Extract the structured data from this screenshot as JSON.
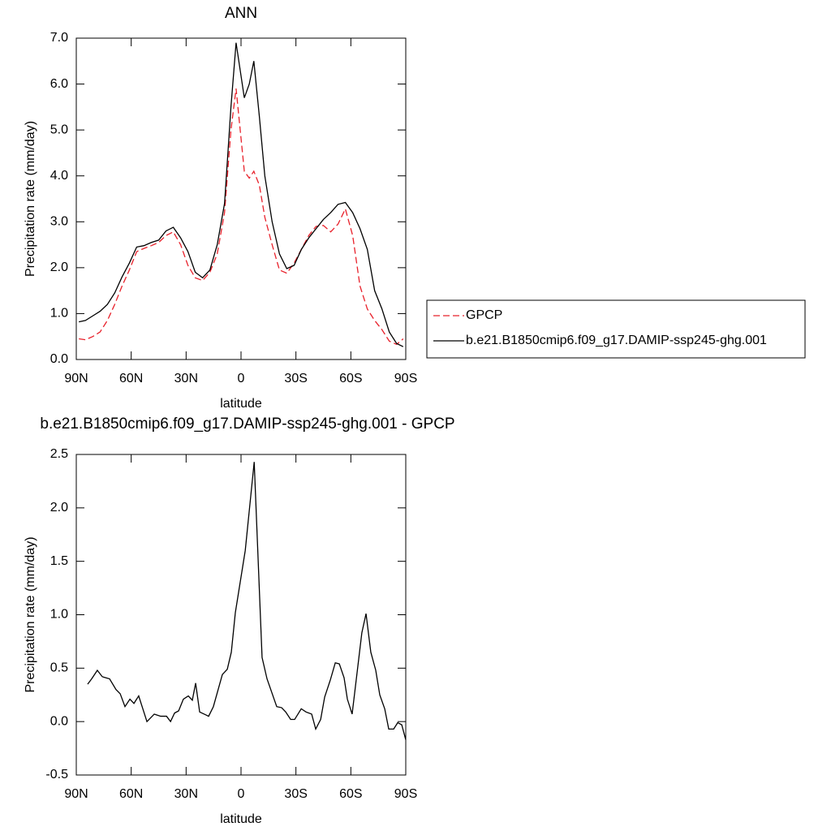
{
  "chart_data": [
    {
      "type": "line",
      "title": "ANN",
      "xlabel": "latitude",
      "ylabel": "Precipitation rate (mm/day)",
      "xlim": [
        90,
        -90
      ],
      "xticks": [
        {
          "value": 90,
          "label": "90N"
        },
        {
          "value": 60,
          "label": "60N"
        },
        {
          "value": 30,
          "label": "30N"
        },
        {
          "value": 0,
          "label": "0"
        },
        {
          "value": -30,
          "label": "30S"
        },
        {
          "value": -60,
          "label": "60S"
        },
        {
          "value": -90,
          "label": "90S"
        }
      ],
      "ylim": [
        0,
        7
      ],
      "yticks": [
        {
          "value": 0,
          "label": "0.0"
        },
        {
          "value": 1,
          "label": "1.0"
        },
        {
          "value": 2,
          "label": "2.0"
        },
        {
          "value": 3,
          "label": "3.0"
        },
        {
          "value": 4,
          "label": "4.0"
        },
        {
          "value": 5,
          "label": "5.0"
        },
        {
          "value": 6,
          "label": "6.0"
        },
        {
          "value": 7,
          "label": "7.0"
        }
      ],
      "legend": "right",
      "x": [
        88.6,
        85,
        81,
        77,
        73,
        69,
        65,
        61,
        57,
        53,
        49,
        45,
        41,
        37,
        33,
        29,
        25,
        21,
        17,
        13,
        9,
        5.5,
        2.7,
        -1.8,
        -4.5,
        -7,
        -10,
        -13,
        -17,
        -21,
        -25,
        -29,
        -33,
        -37,
        -41,
        -45,
        -49,
        -53,
        -57,
        -61,
        -65,
        -69,
        -73,
        -77,
        -81,
        -85,
        -88.6
      ],
      "series": [
        {
          "name": "GPCP",
          "color": "#e8202a",
          "dash": true,
          "values": [
            0.45,
            0.43,
            0.5,
            0.6,
            0.85,
            1.2,
            1.6,
            1.95,
            2.35,
            2.42,
            2.48,
            2.55,
            2.7,
            2.78,
            2.5,
            2.05,
            1.78,
            1.72,
            1.9,
            2.3,
            3.2,
            5.0,
            5.9,
            4.1,
            3.95,
            4.1,
            3.8,
            3.1,
            2.5,
            1.95,
            1.88,
            2.1,
            2.4,
            2.7,
            2.9,
            2.92,
            2.78,
            2.95,
            3.28,
            2.7,
            1.6,
            1.1,
            0.85,
            0.65,
            0.4,
            0.33,
            0.45
          ]
        },
        {
          "name": "b.e21.B1850cmip6.f09_g17.DAMIP-ssp245-ghg.001",
          "color": "#000000",
          "dash": false,
          "values": [
            0.82,
            0.85,
            0.95,
            1.05,
            1.2,
            1.45,
            1.8,
            2.1,
            2.45,
            2.48,
            2.55,
            2.6,
            2.8,
            2.88,
            2.65,
            2.35,
            1.9,
            1.78,
            1.95,
            2.5,
            3.4,
            5.5,
            6.9,
            5.7,
            6.0,
            6.5,
            5.3,
            4.0,
            3.0,
            2.3,
            1.98,
            2.05,
            2.4,
            2.65,
            2.85,
            3.05,
            3.2,
            3.38,
            3.42,
            3.2,
            2.85,
            2.4,
            1.5,
            1.1,
            0.6,
            0.35,
            0.28
          ]
        }
      ]
    },
    {
      "type": "line",
      "title": "b.e21.B1850cmip6.f09_g17.DAMIP-ssp245-ghg.001 - GPCP",
      "xlabel": "latitude",
      "ylabel": "Precipitation rate (mm/day)",
      "xlim": [
        90,
        -90
      ],
      "xticks": [
        {
          "value": 90,
          "label": "90N"
        },
        {
          "value": 60,
          "label": "60N"
        },
        {
          "value": 30,
          "label": "30N"
        },
        {
          "value": 0,
          "label": "0"
        },
        {
          "value": -30,
          "label": "30S"
        },
        {
          "value": -60,
          "label": "60S"
        },
        {
          "value": -90,
          "label": "90S"
        }
      ],
      "ylim": [
        -0.5,
        2.5
      ],
      "yticks": [
        -0.5,
        {
          "value": 0,
          "label": "0.0"
        },
        0.5,
        {
          "value": 1,
          "label": "1.0"
        },
        1.5,
        {
          "value": 2,
          "label": "2.0"
        },
        2.5
      ],
      "x": [
        83.8,
        81.6,
        78.5,
        75.8,
        71.8,
        68.3,
        66.0,
        63.4,
        60.7,
        58.5,
        55.9,
        51.4,
        47.4,
        43.9,
        40.7,
        38.5,
        36.3,
        34.1,
        31.5,
        28.8,
        26.6,
        24.8,
        22.6,
        17.7,
        15.1,
        10.2,
        7.5,
        5.3,
        3.1,
        -2.3,
        -7.2,
        -11.5,
        -14.2,
        -19.5,
        -22.2,
        -24.4,
        -27.1,
        -29.3,
        -32.9,
        -35.5,
        -38.6,
        -40.8,
        -43.5,
        -45.7,
        -48.8,
        -51.5,
        -53.7,
        -56.3,
        -58.1,
        -60.7,
        -66.0,
        -68.3,
        -70.9,
        -73.6,
        -75.8,
        -78.5,
        -80.7,
        -83.4,
        -85.6,
        -87.8,
        -90
      ],
      "series": [
        {
          "color": "#000000",
          "dash": false,
          "values": [
            0.35,
            0.4,
            0.48,
            0.42,
            0.4,
            0.3,
            0.26,
            0.14,
            0.21,
            0.17,
            0.24,
            0.0,
            0.07,
            0.05,
            0.05,
            0.0,
            0.08,
            0.1,
            0.21,
            0.24,
            0.2,
            0.36,
            0.09,
            0.05,
            0.14,
            0.44,
            0.49,
            0.65,
            1.02,
            1.6,
            2.43,
            0.6,
            0.4,
            0.14,
            0.13,
            0.09,
            0.02,
            0.02,
            0.12,
            0.09,
            0.07,
            -0.07,
            0.02,
            0.23,
            0.39,
            0.55,
            0.54,
            0.41,
            0.21,
            0.07,
            0.83,
            1.01,
            0.65,
            0.48,
            0.25,
            0.12,
            -0.07,
            -0.07,
            -0.01,
            -0.03,
            -0.17
          ]
        }
      ]
    }
  ]
}
